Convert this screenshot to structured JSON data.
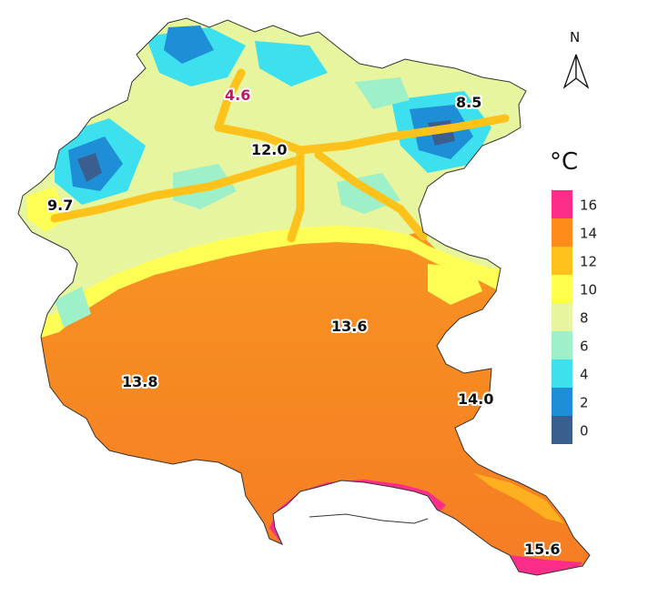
{
  "north_arrow": {
    "label": "N",
    "icon": "north-arrow-icon"
  },
  "legend": {
    "unit": "°C",
    "items": [
      {
        "label": "16",
        "color": "#ff2d8a"
      },
      {
        "label": "14",
        "color": "#ff8c1a"
      },
      {
        "label": "12",
        "color": "#ffc21a"
      },
      {
        "label": "10",
        "color": "#ffff4d"
      },
      {
        "label": "8",
        "color": "#e6f59e"
      },
      {
        "label": "6",
        "color": "#9ef0c8"
      },
      {
        "label": "4",
        "color": "#3de0ee"
      },
      {
        "label": "2",
        "color": "#1e8fd6"
      },
      {
        "label": "0",
        "color": "#3a5f8f"
      }
    ]
  },
  "labels": [
    {
      "id": "alpine-north",
      "text": "4.6",
      "highlight": true
    },
    {
      "id": "north-east",
      "text": "8.5",
      "highlight": false
    },
    {
      "id": "central-valley",
      "text": "12.0",
      "highlight": false
    },
    {
      "id": "west-hills",
      "text": "9.7",
      "highlight": false
    },
    {
      "id": "central-plain",
      "text": "13.6",
      "highlight": false
    },
    {
      "id": "west-plain",
      "text": "13.8",
      "highlight": false
    },
    {
      "id": "east-plain",
      "text": "14.0",
      "highlight": false
    },
    {
      "id": "coast-south-east",
      "text": "15.6",
      "highlight": false
    }
  ]
}
